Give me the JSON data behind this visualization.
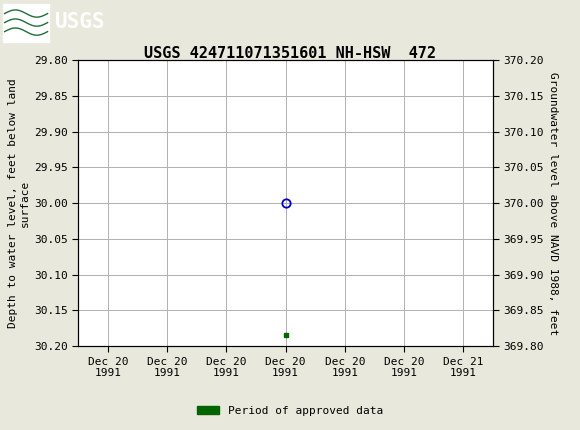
{
  "title": "USGS 424711071351601 NH-HSW  472",
  "ylabel_left": "Depth to water level, feet below land\nsurface",
  "ylabel_right": "Groundwater level above NAVD 1988, feet",
  "ylim_left": [
    29.8,
    30.2
  ],
  "ylim_right": [
    370.2,
    369.8
  ],
  "yticks_left": [
    29.8,
    29.85,
    29.9,
    29.95,
    30.0,
    30.05,
    30.1,
    30.15,
    30.2
  ],
  "yticks_right": [
    370.2,
    370.15,
    370.1,
    370.05,
    370.0,
    369.95,
    369.9,
    369.85,
    369.8
  ],
  "data_point_x": 4.0,
  "data_point_y": 30.0,
  "green_marker_x": 4.0,
  "green_marker_y": 30.185,
  "x_tick_labels": [
    "Dec 20\n1991",
    "Dec 20\n1991",
    "Dec 20\n1991",
    "Dec 20\n1991",
    "Dec 20\n1991",
    "Dec 20\n1991",
    "Dec 21\n1991"
  ],
  "x_ticks": [
    1,
    2,
    3,
    4,
    5,
    6,
    7
  ],
  "xlim": [
    0.5,
    7.5
  ],
  "header_color": "#1e6e3a",
  "bg_color": "#e8e8dc",
  "plot_bg_color": "#ffffff",
  "grid_color": "#b0b0b0",
  "circle_color": "#0000cc",
  "green_sq_color": "#006400",
  "legend_label": "Period of approved data",
  "font_family": "monospace",
  "title_fontsize": 11,
  "tick_fontsize": 8,
  "label_fontsize": 8
}
